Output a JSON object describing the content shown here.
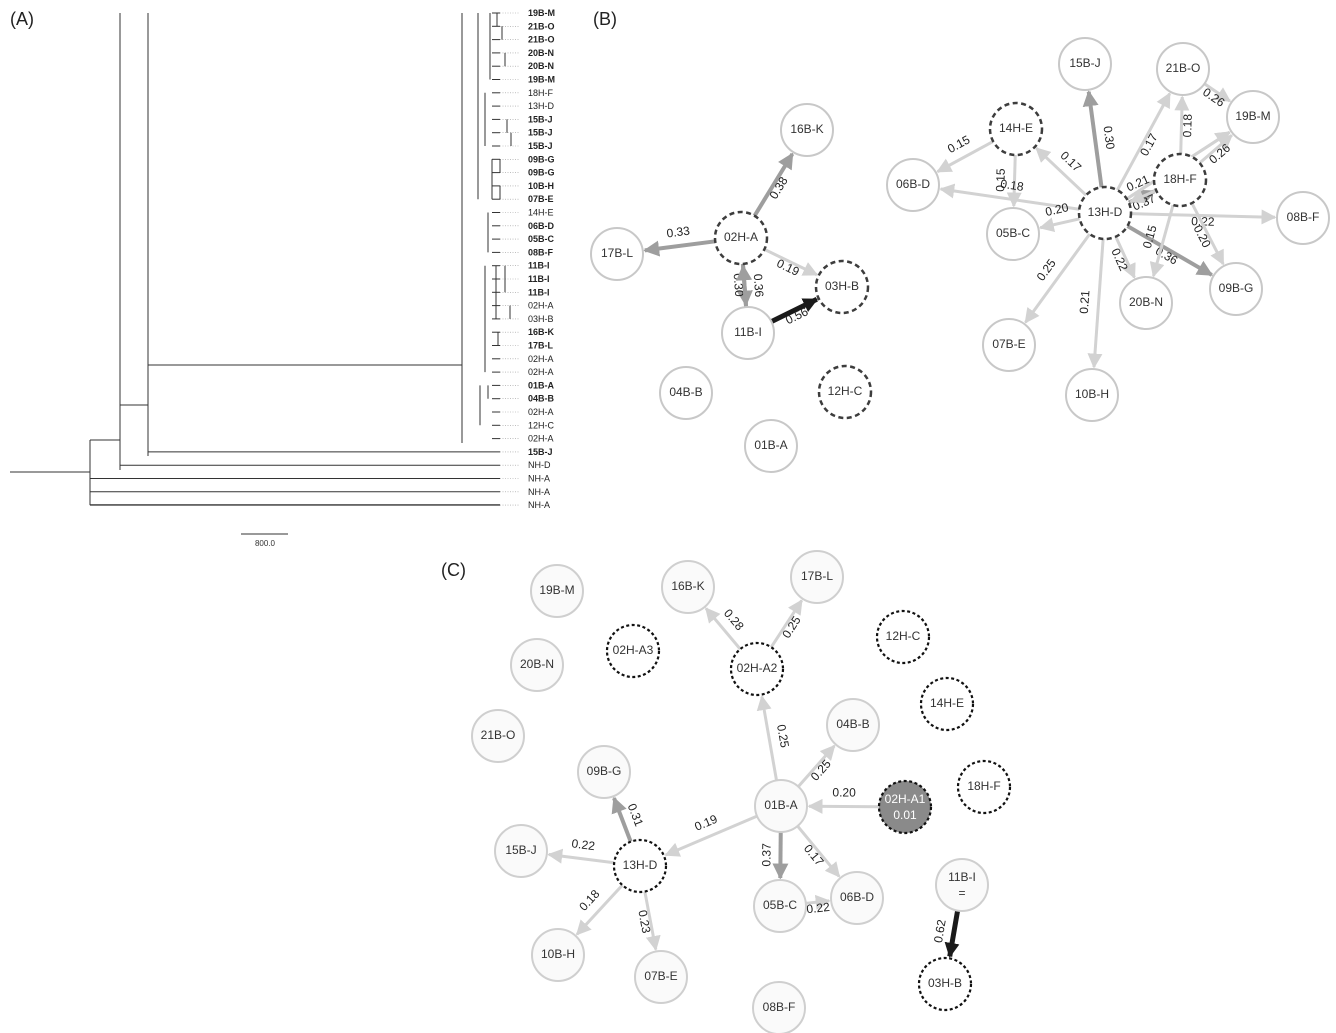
{
  "panels": {
    "a": "(A)",
    "b": "(B)",
    "c": "(C)"
  },
  "tree": {
    "scale_label": "800.0",
    "leaves": [
      {
        "label": "19B-M",
        "bold": true
      },
      {
        "label": "21B-O",
        "bold": true
      },
      {
        "label": "21B-O",
        "bold": true
      },
      {
        "label": "20B-N",
        "bold": true
      },
      {
        "label": "20B-N",
        "bold": true
      },
      {
        "label": "19B-M",
        "bold": true
      },
      {
        "label": "18H-F",
        "bold": false
      },
      {
        "label": "13H-D",
        "bold": false
      },
      {
        "label": "15B-J",
        "bold": true
      },
      {
        "label": "15B-J",
        "bold": true
      },
      {
        "label": "15B-J",
        "bold": true
      },
      {
        "label": "09B-G",
        "bold": true
      },
      {
        "label": "09B-G",
        "bold": true
      },
      {
        "label": "10B-H",
        "bold": true
      },
      {
        "label": "07B-E",
        "bold": true
      },
      {
        "label": "14H-E",
        "bold": false
      },
      {
        "label": "06B-D",
        "bold": true
      },
      {
        "label": "05B-C",
        "bold": true
      },
      {
        "label": "08B-F",
        "bold": true
      },
      {
        "label": "11B-I",
        "bold": true
      },
      {
        "label": "11B-I",
        "bold": true
      },
      {
        "label": "11B-I",
        "bold": true
      },
      {
        "label": "02H-A",
        "bold": false
      },
      {
        "label": "03H-B",
        "bold": false
      },
      {
        "label": "16B-K",
        "bold": true
      },
      {
        "label": "17B-L",
        "bold": true
      },
      {
        "label": "02H-A",
        "bold": false
      },
      {
        "label": "02H-A",
        "bold": false
      },
      {
        "label": "01B-A",
        "bold": true
      },
      {
        "label": "04B-B",
        "bold": true
      },
      {
        "label": "02H-A",
        "bold": false
      },
      {
        "label": "12H-C",
        "bold": false
      },
      {
        "label": "02H-A",
        "bold": false
      },
      {
        "label": "15B-J",
        "bold": true
      },
      {
        "label": "NH-D",
        "bold": false
      },
      {
        "label": "NH-A",
        "bold": false
      },
      {
        "label": "NH-A",
        "bold": false
      },
      {
        "label": "NH-A",
        "bold": false
      }
    ]
  },
  "network_b": {
    "nodes": [
      {
        "id": "16B-K",
        "style": "solid"
      },
      {
        "id": "02H-A",
        "style": "dashed"
      },
      {
        "id": "17B-L",
        "style": "solid"
      },
      {
        "id": "03H-B",
        "style": "dashed"
      },
      {
        "id": "11B-I",
        "style": "solid"
      },
      {
        "id": "04B-B",
        "style": "solid"
      },
      {
        "id": "12H-C",
        "style": "dashed"
      },
      {
        "id": "01B-A",
        "style": "solid"
      },
      {
        "id": "15B-J",
        "style": "solid"
      },
      {
        "id": "21B-O",
        "style": "solid"
      },
      {
        "id": "19B-M",
        "style": "solid"
      },
      {
        "id": "14H-E",
        "style": "dashed"
      },
      {
        "id": "06B-D",
        "style": "solid"
      },
      {
        "id": "18H-F",
        "style": "dashed"
      },
      {
        "id": "05B-C",
        "style": "solid"
      },
      {
        "id": "13H-D",
        "style": "dashed"
      },
      {
        "id": "08B-F",
        "style": "solid"
      },
      {
        "id": "09B-G",
        "style": "solid"
      },
      {
        "id": "20B-N",
        "style": "solid"
      },
      {
        "id": "07B-E",
        "style": "solid"
      },
      {
        "id": "10B-H",
        "style": "solid"
      }
    ],
    "edges": [
      {
        "from": "02H-A",
        "to": "16B-K",
        "weight": "0.38"
      },
      {
        "from": "02H-A",
        "to": "17B-L",
        "weight": "0.33"
      },
      {
        "from": "02H-A",
        "to": "03H-B",
        "weight": "0.19"
      },
      {
        "from": "02H-A",
        "to": "11B-I",
        "weight": "0.30"
      },
      {
        "from": "11B-I",
        "to": "02H-A",
        "weight": "0.36"
      },
      {
        "from": "11B-I",
        "to": "03H-B",
        "weight": "0.56"
      },
      {
        "from": "13H-D",
        "to": "14H-E",
        "weight": "0.17"
      },
      {
        "from": "14H-E",
        "to": "06B-D",
        "weight": "0.15"
      },
      {
        "from": "14H-E",
        "to": "05B-C",
        "weight": "0.15"
      },
      {
        "from": "13H-D",
        "to": "06B-D",
        "weight": "0.18"
      },
      {
        "from": "13H-D",
        "to": "15B-J",
        "weight": "0.30"
      },
      {
        "from": "13H-D",
        "to": "21B-O",
        "weight": "0.17"
      },
      {
        "from": "13H-D",
        "to": "19B-M",
        "weight": "0.25"
      },
      {
        "from": "13H-D",
        "to": "18H-F",
        "weight": "0.37"
      },
      {
        "from": "18H-F",
        "to": "21B-O",
        "weight": "0.18"
      },
      {
        "from": "21B-O",
        "to": "19B-M",
        "weight": "0.26"
      },
      {
        "from": "18H-F",
        "to": "19B-M",
        "weight": "0.26"
      },
      {
        "from": "13H-D",
        "to": "19B-M",
        "weight": "0.19"
      },
      {
        "from": "13H-D",
        "to": "08B-F",
        "weight": "0.22"
      },
      {
        "from": "18H-F",
        "to": "09B-G",
        "weight": "0.20"
      },
      {
        "from": "13H-D",
        "to": "09B-G",
        "weight": "0.36"
      },
      {
        "from": "18H-F",
        "to": "20B-N",
        "weight": "0.15"
      },
      {
        "from": "13H-D",
        "to": "20B-N",
        "weight": "0.22"
      },
      {
        "from": "13H-D",
        "to": "05B-C",
        "weight": "0.20"
      },
      {
        "from": "13H-D",
        "to": "07B-E",
        "weight": "0.25"
      },
      {
        "from": "13H-D",
        "to": "10B-H",
        "weight": "0.21"
      },
      {
        "from": "18H-F",
        "to": "13H-D",
        "weight": "0.21"
      }
    ]
  },
  "network_c": {
    "nodes": [
      {
        "id": "19B-M",
        "style": "solid"
      },
      {
        "id": "16B-K",
        "style": "solid"
      },
      {
        "id": "17B-L",
        "style": "solid"
      },
      {
        "id": "20B-N",
        "style": "solid"
      },
      {
        "id": "02H-A3",
        "style": "dashed"
      },
      {
        "id": "02H-A2",
        "style": "dashed"
      },
      {
        "id": "12H-C",
        "style": "dashed"
      },
      {
        "id": "14H-E",
        "style": "dashed"
      },
      {
        "id": "21B-O",
        "style": "solid"
      },
      {
        "id": "04B-B",
        "style": "solid"
      },
      {
        "id": "09B-G",
        "style": "solid"
      },
      {
        "id": "18H-F",
        "style": "dashed"
      },
      {
        "id": "01B-A",
        "style": "solid"
      },
      {
        "id": "02H-A1",
        "style": "filled",
        "sub": "0.01"
      },
      {
        "id": "15B-J",
        "style": "solid"
      },
      {
        "id": "13H-D",
        "style": "dashed"
      },
      {
        "id": "05B-C",
        "style": "solid"
      },
      {
        "id": "06B-D",
        "style": "solid"
      },
      {
        "id": "11B-I",
        "style": "solid",
        "sub": "="
      },
      {
        "id": "10B-H",
        "style": "solid"
      },
      {
        "id": "07B-E",
        "style": "solid"
      },
      {
        "id": "03H-B",
        "style": "dashed"
      },
      {
        "id": "08B-F",
        "style": "solid"
      }
    ],
    "edges": [
      {
        "from": "02H-A2",
        "to": "16B-K",
        "weight": "0.28"
      },
      {
        "from": "02H-A2",
        "to": "17B-L",
        "weight": "0.25"
      },
      {
        "from": "01B-A",
        "to": "02H-A2",
        "weight": "0.25"
      },
      {
        "from": "01B-A",
        "to": "04B-B",
        "weight": "0.25"
      },
      {
        "from": "02H-A1",
        "to": "01B-A",
        "weight": "0.20"
      },
      {
        "from": "01B-A",
        "to": "13H-D",
        "weight": "0.19"
      },
      {
        "from": "01B-A",
        "to": "05B-C",
        "weight": "0.37"
      },
      {
        "from": "01B-A",
        "to": "06B-D",
        "weight": "0.17"
      },
      {
        "from": "05B-C",
        "to": "06B-D",
        "weight": "0.22"
      },
      {
        "from": "13H-D",
        "to": "09B-G",
        "weight": "0.31"
      },
      {
        "from": "13H-D",
        "to": "15B-J",
        "weight": "0.22"
      },
      {
        "from": "13H-D",
        "to": "10B-H",
        "weight": "0.18"
      },
      {
        "from": "13H-D",
        "to": "07B-E",
        "weight": "0.23"
      },
      {
        "from": "11B-I",
        "to": "03H-B",
        "weight": "0.62"
      }
    ]
  },
  "colors": {
    "edge_light": "#d2d2d2",
    "edge_mid": "#9e9e9e",
    "edge_dark": "#1a1a1a",
    "node_fill": "#8a8a8a"
  }
}
